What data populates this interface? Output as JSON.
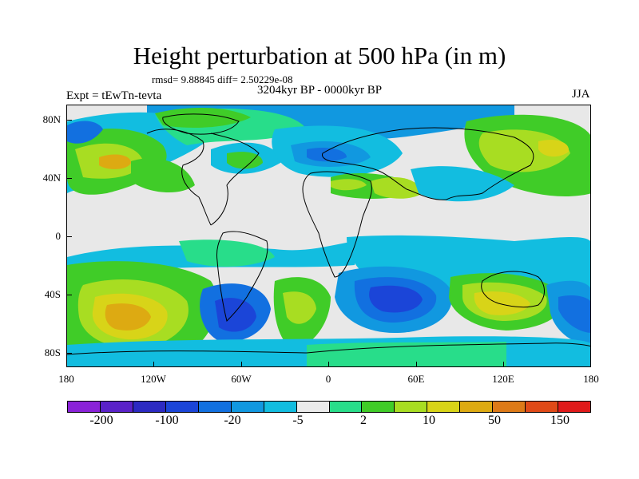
{
  "title": "Height perturbation at 500 hPa (in m)",
  "stats": "rmsd= 9.88845 diff= 2.50229e-08",
  "period": "3204kyr BP - 0000kyr BP",
  "experiment": "Expt = tEwTn-tevta",
  "season": "JJA",
  "lat_labels": [
    "80N",
    "40N",
    "0",
    "40S",
    "80S"
  ],
  "lon_labels": [
    "180",
    "120W",
    "60W",
    "0",
    "60E",
    "120E",
    "180"
  ],
  "colorbar": {
    "colors": [
      "#8a22d8",
      "#5a22c8",
      "#2c2ac2",
      "#1b45d8",
      "#1270e0",
      "#1198e0",
      "#12bde0",
      "#ebebeb",
      "#28dd8a",
      "#40cc28",
      "#a8dd22",
      "#d8d418",
      "#ddaa12",
      "#dd7a18",
      "#e04a18",
      "#e01a1a"
    ],
    "labels": [
      "-200",
      "-100",
      "-20",
      "-5",
      "2",
      "10",
      "50",
      "150"
    ]
  },
  "palette": {
    "blue_dark": "#1b45d8",
    "blue": "#1270e0",
    "blue_mid": "#1198e0",
    "cyan": "#12bde0",
    "neutral": "#ebebeb",
    "green_light": "#28dd8a",
    "green": "#40cc28",
    "yellow_green": "#a8dd22",
    "yellow": "#d8d418",
    "orange": "#ddaa12"
  }
}
